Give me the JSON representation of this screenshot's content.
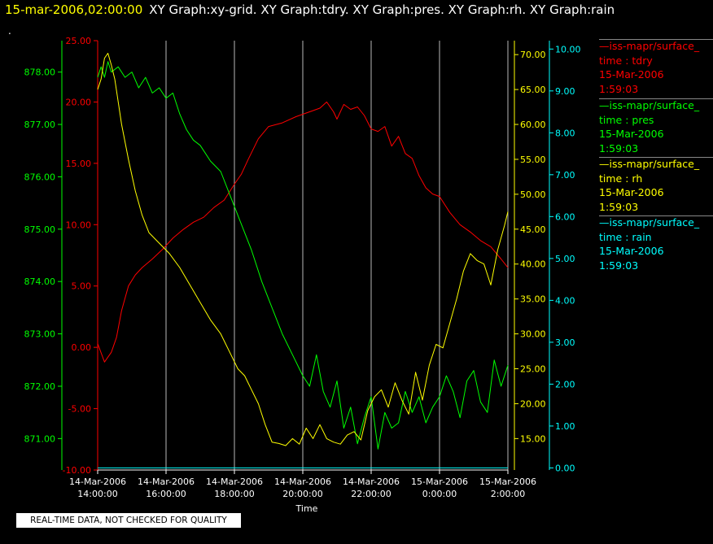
{
  "header": {
    "timestamp": "15-mar-2006,02:00:00",
    "graph_titles": "XY Graph:xy-grid.  XY Graph:tdry.  XY Graph:pres.  XY Graph:rh.  XY Graph:rain"
  },
  "header_dot": ".",
  "quality_note": "REAL-TIME DATA, NOT CHECKED FOR QUALITY",
  "colors": {
    "tdry": "#ff0000",
    "pres": "#00ff00",
    "rh": "#ffff00",
    "rain": "#00ffff",
    "grid": "#d8d8d8"
  },
  "legend": [
    {
      "source": "—iss-mapr/surface_",
      "label": "time : tdry",
      "date": "15-Mar-2006",
      "time": "1:59:03",
      "color": "#ff0000"
    },
    {
      "source": "—iss-mapr/surface_",
      "label": "time : pres",
      "date": "15-Mar-2006",
      "time": "1:59:03",
      "color": "#00ff00"
    },
    {
      "source": "—iss-mapr/surface_",
      "label": "time : rh",
      "date": "15-Mar-2006",
      "time": "1:59:03",
      "color": "#ffff00"
    },
    {
      "source": "—iss-mapr/surface_",
      "label": "time : rain",
      "date": "15-Mar-2006",
      "time": "1:59:03",
      "color": "#00ffff"
    }
  ],
  "chart_data": {
    "type": "line",
    "xlabel": "Time",
    "x_ticks": [
      {
        "line1": "14-Mar-2006",
        "line2": "14:00:00"
      },
      {
        "line1": "14-Mar-2006",
        "line2": "16:00:00"
      },
      {
        "line1": "14-Mar-2006",
        "line2": "18:00:00"
      },
      {
        "line1": "14-Mar-2006",
        "line2": "20:00:00"
      },
      {
        "line1": "14-Mar-2006",
        "line2": "22:00:00"
      },
      {
        "line1": "15-Mar-2006",
        "line2": "0:00:00"
      },
      {
        "line1": "15-Mar-2006",
        "line2": "2:00:00"
      }
    ],
    "x_hours": [
      14,
      16,
      18,
      20,
      22,
      24,
      26
    ],
    "xlim": [
      14,
      26
    ],
    "grid": true,
    "axes": {
      "tdry": {
        "ticks": [
          "25.00",
          "20.00",
          "15.00",
          "10.00",
          "5.00",
          "0.00",
          "-5.00",
          "-10.00"
        ],
        "ylim": [
          -10,
          25
        ]
      },
      "pres": {
        "ticks": [
          "878.00",
          "877.00",
          "876.00",
          "875.00",
          "874.00",
          "873.00",
          "872.00",
          "871.00"
        ],
        "ylim": [
          870.4,
          878.6
        ]
      },
      "rh": {
        "ticks": [
          "70.00",
          "65.00",
          "60.00",
          "55.00",
          "50.00",
          "45.00",
          "40.00",
          "35.00",
          "30.00",
          "25.00",
          "20.00",
          "15.00"
        ],
        "ylim": [
          10.5,
          72
        ]
      },
      "rain": {
        "ticks": [
          "10.00",
          "9.00",
          "8.00",
          "7.00",
          "6.00",
          "5.00",
          "4.00",
          "3.00",
          "2.00",
          "1.00",
          "0.00"
        ],
        "ylim": [
          -0.05,
          10.2
        ]
      }
    },
    "series": [
      {
        "name": "tdry",
        "x": [
          14.0,
          14.2,
          14.4,
          14.55,
          14.7,
          14.9,
          15.1,
          15.3,
          15.6,
          15.9,
          16.2,
          16.5,
          16.8,
          17.1,
          17.4,
          17.7,
          18.0,
          18.2,
          18.4,
          18.7,
          19.0,
          19.4,
          19.8,
          20.2,
          20.5,
          20.7,
          20.9,
          21.0,
          21.2,
          21.4,
          21.6,
          21.8,
          22.0,
          22.2,
          22.4,
          22.6,
          22.8,
          23.0,
          23.2,
          23.4,
          23.6,
          23.8,
          24.0,
          24.3,
          24.6,
          24.9,
          25.2,
          25.5,
          25.8,
          26.0
        ],
        "y": [
          0.3,
          -1.2,
          -0.4,
          0.8,
          3.0,
          5.0,
          5.9,
          6.5,
          7.2,
          8.0,
          8.9,
          9.6,
          10.2,
          10.6,
          11.4,
          12.0,
          13.3,
          14.1,
          15.3,
          17.0,
          18.0,
          18.3,
          18.8,
          19.2,
          19.5,
          20.0,
          19.2,
          18.6,
          19.8,
          19.4,
          19.6,
          18.9,
          17.8,
          17.6,
          18.0,
          16.4,
          17.2,
          15.8,
          15.4,
          14.0,
          13.0,
          12.5,
          12.3,
          11.0,
          10.0,
          9.4,
          8.7,
          8.2,
          7.2,
          6.5
        ]
      },
      {
        "name": "pres",
        "x": [
          14.0,
          14.1,
          14.2,
          14.3,
          14.4,
          14.6,
          14.8,
          15.0,
          15.2,
          15.4,
          15.6,
          15.8,
          16.0,
          16.2,
          16.4,
          16.6,
          16.8,
          17.0,
          17.3,
          17.6,
          17.9,
          18.2,
          18.5,
          18.8,
          19.1,
          19.4,
          19.7,
          20.0,
          20.2,
          20.4,
          20.6,
          20.8,
          21.0,
          21.2,
          21.4,
          21.6,
          21.8,
          22.0,
          22.2,
          22.4,
          22.6,
          22.8,
          23.0,
          23.2,
          23.4,
          23.6,
          23.8,
          24.0,
          24.2,
          24.4,
          24.6,
          24.8,
          25.0,
          25.2,
          25.4,
          25.6,
          25.8,
          26.0
        ],
        "y": [
          877.9,
          878.1,
          877.9,
          878.2,
          878.0,
          878.1,
          877.9,
          878.0,
          877.7,
          877.9,
          877.6,
          877.7,
          877.5,
          877.6,
          877.2,
          876.9,
          876.7,
          876.6,
          876.3,
          876.1,
          875.6,
          875.1,
          874.6,
          874.0,
          873.5,
          873.0,
          872.6,
          872.2,
          872.0,
          872.6,
          871.9,
          871.6,
          872.1,
          871.2,
          871.6,
          870.9,
          871.4,
          871.8,
          870.8,
          871.5,
          871.2,
          871.3,
          871.9,
          871.5,
          871.8,
          871.3,
          871.6,
          871.8,
          872.2,
          871.9,
          871.4,
          872.1,
          872.3,
          871.7,
          871.5,
          872.5,
          872.0,
          872.4
        ]
      },
      {
        "name": "rh",
        "x": [
          14.0,
          14.1,
          14.2,
          14.3,
          14.4,
          14.5,
          14.7,
          14.9,
          15.1,
          15.3,
          15.5,
          15.8,
          16.1,
          16.4,
          16.7,
          17.0,
          17.3,
          17.6,
          17.9,
          18.1,
          18.3,
          18.5,
          18.7,
          18.9,
          19.1,
          19.3,
          19.5,
          19.7,
          19.9,
          20.1,
          20.3,
          20.5,
          20.7,
          20.9,
          21.1,
          21.3,
          21.5,
          21.7,
          21.9,
          22.1,
          22.3,
          22.5,
          22.7,
          22.9,
          23.1,
          23.3,
          23.5,
          23.7,
          23.9,
          24.1,
          24.3,
          24.5,
          24.7,
          24.9,
          25.1,
          25.3,
          25.5,
          25.7,
          25.9,
          26.0
        ],
        "y": [
          65.0,
          66.5,
          69.5,
          70.2,
          68.5,
          66.5,
          60.0,
          55.0,
          50.5,
          47.0,
          44.5,
          43.0,
          41.5,
          39.5,
          37.0,
          34.5,
          32.0,
          30.0,
          27.0,
          25.0,
          24.0,
          22.0,
          20.0,
          17.0,
          14.5,
          14.3,
          14.0,
          15.0,
          14.2,
          16.5,
          15.0,
          17.0,
          15.0,
          14.5,
          14.2,
          15.5,
          16.0,
          14.8,
          19.0,
          21.0,
          22.0,
          19.5,
          23.0,
          20.5,
          18.5,
          24.5,
          20.5,
          25.5,
          28.5,
          28.0,
          31.5,
          35.0,
          39.0,
          41.5,
          40.5,
          40.0,
          37.0,
          42.0,
          45.5,
          47.5
        ]
      },
      {
        "name": "rain",
        "x": [
          14.0,
          26.0
        ],
        "y": [
          0.0,
          0.0
        ]
      }
    ]
  }
}
